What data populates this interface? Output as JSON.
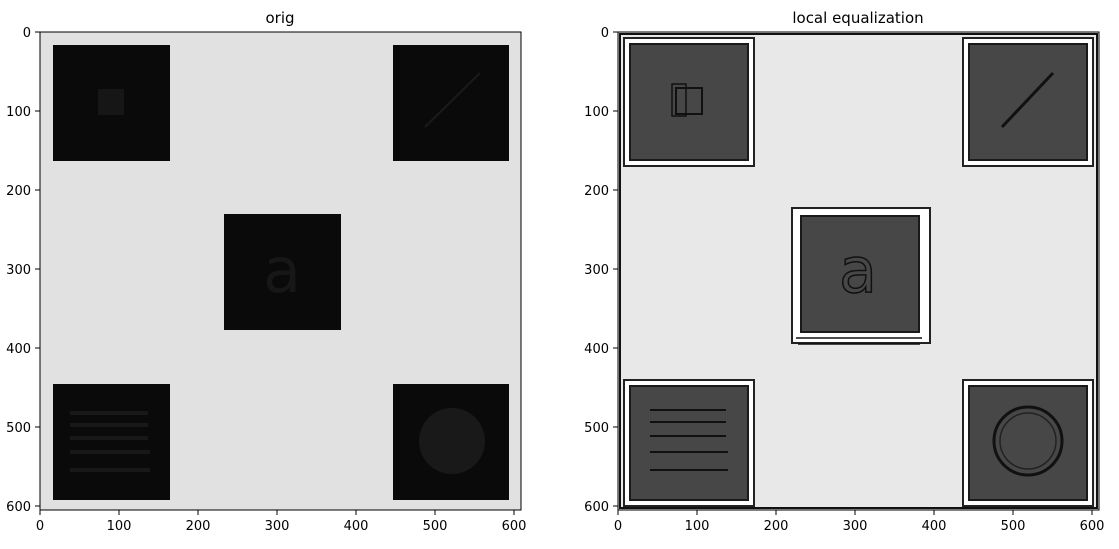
{
  "panels": [
    {
      "title": "orig",
      "x_ticks": [
        "0",
        "100",
        "200",
        "300",
        "400",
        "500",
        "600"
      ],
      "y_ticks": [
        "0",
        "100",
        "200",
        "300",
        "400",
        "500",
        "600"
      ]
    },
    {
      "title": "local equalization",
      "x_ticks": [
        "0",
        "100",
        "200",
        "300",
        "400",
        "500",
        "600"
      ],
      "y_ticks": [
        "0",
        "100",
        "200",
        "300",
        "400",
        "500",
        "600"
      ]
    }
  ],
  "colors": {
    "orig_background": "#e1e1e1",
    "orig_square": "#0a0a0a",
    "orig_feature": "#181818",
    "eq_background": "#e8e8e8",
    "eq_square": "#474747",
    "eq_outline": "#1a1a1a"
  }
}
